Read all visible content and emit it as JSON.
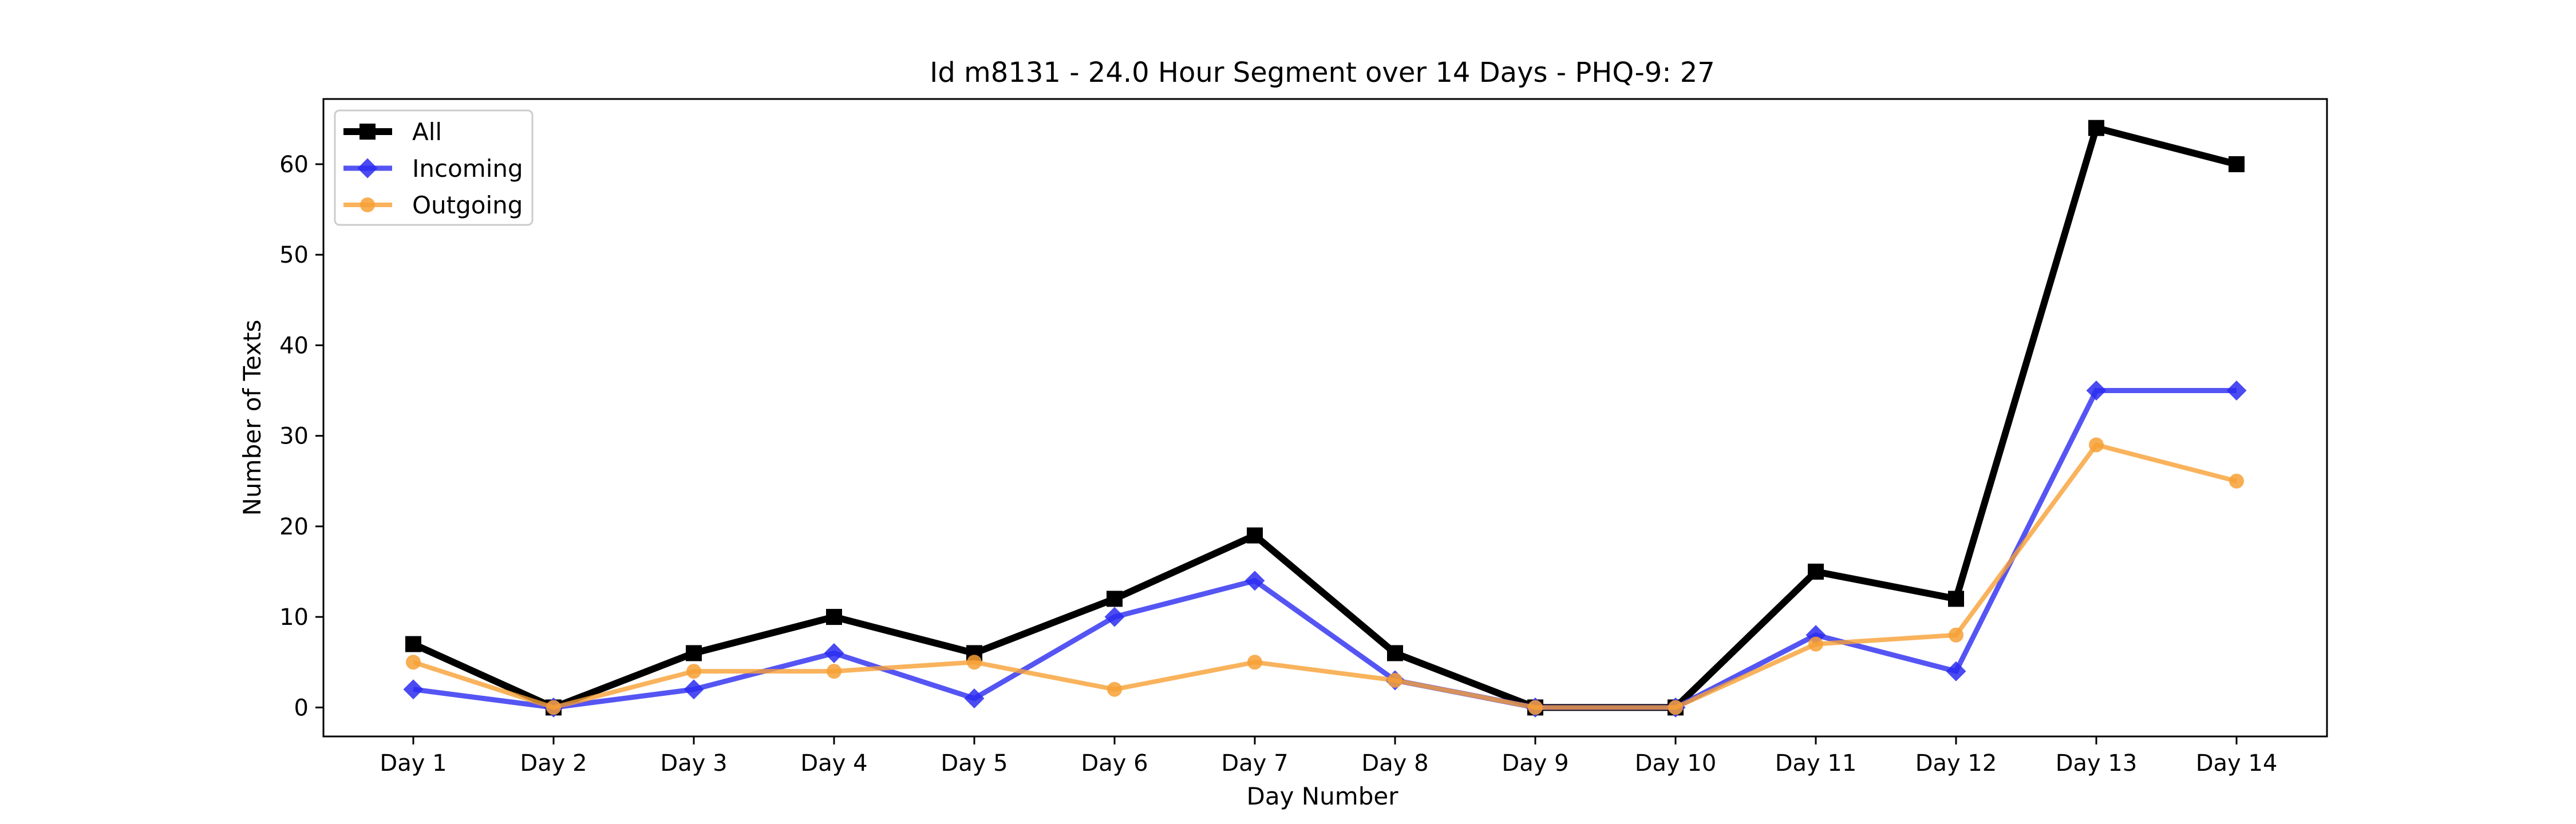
{
  "chart_data": {
    "type": "line",
    "title": "Id m8131 - 24.0 Hour Segment over 14 Days - PHQ-9: 27",
    "xlabel": "Day Number",
    "ylabel": "Number of Texts",
    "categories": [
      "Day 1",
      "Day 2",
      "Day 3",
      "Day 4",
      "Day 5",
      "Day 6",
      "Day 7",
      "Day 8",
      "Day 9",
      "Day 10",
      "Day 11",
      "Day 12",
      "Day 13",
      "Day 14"
    ],
    "ylim": [
      -3.2,
      67.2
    ],
    "yticks": [
      0,
      10,
      20,
      30,
      40,
      50,
      60
    ],
    "grid": false,
    "legend_position": "top-left",
    "series": [
      {
        "name": "All",
        "color": "#000000",
        "marker": "square",
        "values": [
          7,
          0,
          6,
          10,
          6,
          12,
          19,
          6,
          0,
          0,
          15,
          12,
          64,
          60
        ]
      },
      {
        "name": "Incoming",
        "color": "#2b2bf0",
        "marker": "diamond",
        "values": [
          2,
          0,
          2,
          6,
          1,
          10,
          14,
          3,
          0,
          0,
          8,
          4,
          35,
          35
        ]
      },
      {
        "name": "Outgoing",
        "color": "#f7a035",
        "marker": "circle",
        "values": [
          5,
          0,
          4,
          4,
          5,
          2,
          5,
          3,
          0,
          0,
          7,
          8,
          29,
          25
        ]
      }
    ]
  }
}
